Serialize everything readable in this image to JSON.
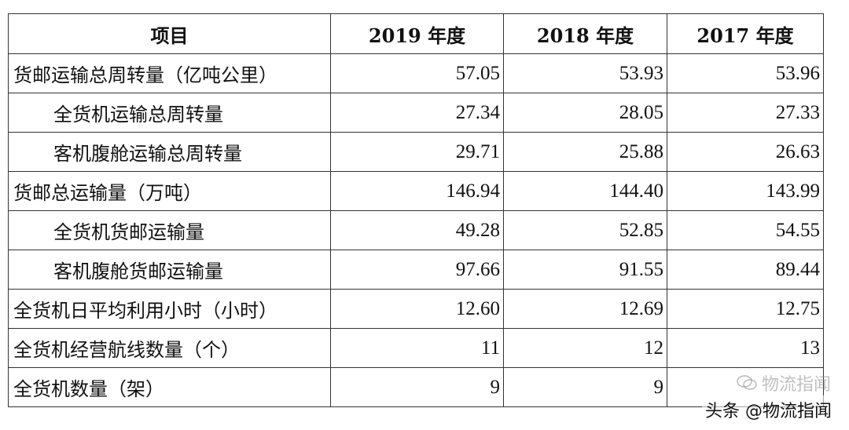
{
  "table": {
    "headers": [
      "项目",
      "2019 年度",
      "2018 年度",
      "2017 年度"
    ],
    "rows": [
      {
        "label": "货邮运输总周转量（亿吨公里）",
        "indent": false,
        "values": [
          "57.05",
          "53.93",
          "53.96"
        ]
      },
      {
        "label": "全货机运输总周转量",
        "indent": true,
        "values": [
          "27.34",
          "28.05",
          "27.33"
        ]
      },
      {
        "label": "客机腹舱运输总周转量",
        "indent": true,
        "values": [
          "29.71",
          "25.88",
          "26.63"
        ]
      },
      {
        "label": "货邮总运输量（万吨）",
        "indent": false,
        "values": [
          "146.94",
          "144.40",
          "143.99"
        ]
      },
      {
        "label": "全货机货邮运输量",
        "indent": true,
        "values": [
          "49.28",
          "52.85",
          "54.55"
        ]
      },
      {
        "label": "客机腹舱货邮运输量",
        "indent": true,
        "values": [
          "97.66",
          "91.55",
          "89.44"
        ]
      },
      {
        "label": "全货机日平均利用小时（小时）",
        "indent": false,
        "values": [
          "12.60",
          "12.69",
          "12.75"
        ]
      },
      {
        "label": "全货机经营航线数量（个）",
        "indent": false,
        "values": [
          "11",
          "12",
          "13"
        ]
      },
      {
        "label": "全货机数量（架）",
        "indent": false,
        "values": [
          "9",
          "9",
          ""
        ]
      }
    ]
  },
  "watermark": {
    "text": "头条 @物流指闻",
    "faint_text": "物流指闻",
    "icon": "wechat-icon"
  }
}
